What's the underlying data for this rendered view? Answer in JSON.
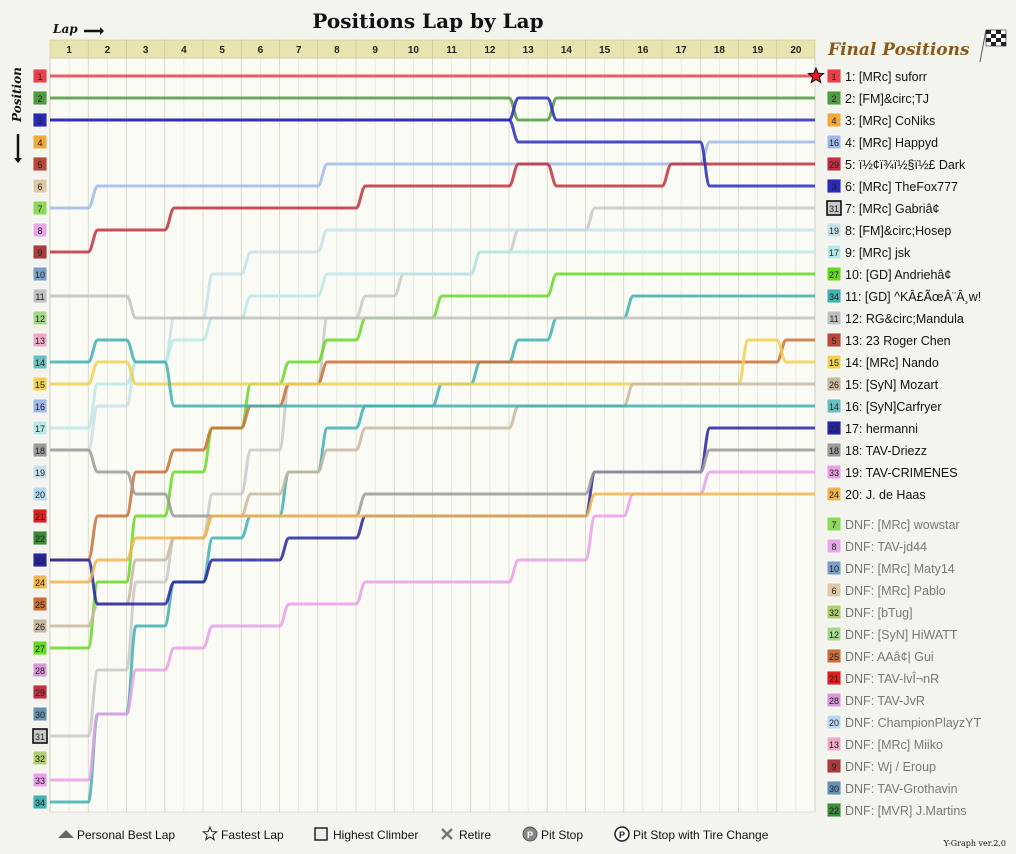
{
  "title": "Positions Lap by Lap",
  "lap_label": "Lap",
  "position_label": "Position",
  "final_title": "Final Positions",
  "version": "Y-Graph ver.2.0",
  "legend": [
    {
      "icon": "triangle",
      "label": "Personal Best Lap"
    },
    {
      "icon": "star",
      "label": "Fastest Lap"
    },
    {
      "icon": "square",
      "label": "Highest Climber"
    },
    {
      "icon": "cross",
      "label": "Retire"
    },
    {
      "icon": "pit",
      "label": "Pit Stop"
    },
    {
      "icon": "pit-tire",
      "label": "Pit Stop with Tire Change"
    }
  ],
  "colors": {
    "1": "#e8404a",
    "2": "#4e9a40",
    "3": "#2a2ab8",
    "4": "#f0aa3c",
    "5": "#b8483c",
    "6": "#e0c8a6",
    "7": "#8cd85a",
    "8": "#e8a8e8",
    "9": "#a83c3c",
    "10": "#7aa0c8",
    "11": "#c0c0c0",
    "12": "#a6d88a",
    "13": "#f0a8c8",
    "14": "#6ac0c0",
    "15": "#f0d050",
    "16": "#a0b8e8",
    "17": "#b8e8e8",
    "18": "#9a9a9a",
    "19": "#c8e0e8",
    "20": "#b8d8f0",
    "21": "#e02020",
    "22": "#3a8a3a",
    "23": "#2424a0",
    "24": "#f0b450",
    "25": "#c87038",
    "26": "#c8b8a0",
    "27": "#68d828",
    "28": "#d898d8",
    "29": "#c03040",
    "30": "#6890b0",
    "31": "#c8c8c8",
    "32": "#b0d070",
    "33": "#e8a0e8",
    "34": "#40b0b0"
  },
  "chart_data": {
    "type": "line",
    "title": "Positions Lap by Lap",
    "xlabel": "Lap",
    "ylabel": "Position",
    "laps": [
      1,
      2,
      3,
      4,
      5,
      6,
      7,
      8,
      9,
      10,
      11,
      12,
      13,
      14,
      15,
      16,
      17,
      18,
      19,
      20
    ],
    "positions": [
      1,
      2,
      3,
      4,
      5,
      6,
      7,
      8,
      9,
      10,
      11,
      12,
      13,
      14,
      15,
      16,
      17,
      18,
      19,
      20,
      21,
      22,
      23,
      24,
      25,
      26,
      27,
      28,
      29,
      30,
      31,
      32,
      33,
      34
    ],
    "series": [
      {
        "name": "[MRc] suforr",
        "color": "#e8404a",
        "positions": [
          1,
          1,
          1,
          1,
          1,
          1,
          1,
          1,
          1,
          1,
          1,
          1,
          1,
          1,
          1,
          1,
          1,
          1,
          1,
          1
        ]
      },
      {
        "name": "[FM]&circ;TJ",
        "color": "#4e9a40",
        "positions": [
          2,
          2,
          2,
          2,
          2,
          2,
          2,
          2,
          2,
          2,
          2,
          2,
          3,
          2,
          2,
          2,
          2,
          2,
          2,
          2
        ]
      },
      {
        "name": "[MRc] CoNiks",
        "color": "#2a2ab8",
        "positions": [
          3,
          3,
          3,
          3,
          3,
          3,
          3,
          3,
          3,
          3,
          3,
          3,
          2,
          3,
          3,
          3,
          3,
          3,
          3,
          3
        ]
      },
      {
        "name": "[MRc] Happyd",
        "color": "#a0b8e8",
        "positions": [
          7,
          6,
          6,
          6,
          6,
          6,
          6,
          5,
          5,
          5,
          5,
          5,
          5,
          5,
          5,
          5,
          5,
          4,
          4,
          4
        ]
      },
      {
        "name": "ï½¢ï¾ï½§ï½£ Dark",
        "color": "#c03040",
        "positions": [
          9,
          8,
          8,
          7,
          7,
          7,
          7,
          7,
          6,
          6,
          6,
          6,
          5,
          6,
          6,
          6,
          5,
          5,
          5,
          5
        ]
      },
      {
        "name": "[MRc] TheFox777",
        "color": "#2a2ab8",
        "positions": [
          3,
          3,
          3,
          3,
          3,
          3,
          3,
          3,
          3,
          3,
          3,
          3,
          4,
          4,
          4,
          4,
          4,
          6,
          6,
          6
        ]
      },
      {
        "name": "[MRc] Gabriâ¢",
        "color": "#c8c8c8",
        "positions": [
          31,
          28,
          24,
          22,
          20,
          18,
          15,
          12,
          11,
          10,
          10,
          9,
          8,
          8,
          7,
          7,
          7,
          7,
          7,
          7
        ]
      },
      {
        "name": "[FM]&circ;Hosep",
        "color": "#c8e0e8",
        "positions": [
          18,
          16,
          14,
          12,
          10,
          9,
          9,
          8,
          8,
          8,
          8,
          8,
          8,
          8,
          8,
          8,
          8,
          8,
          8,
          8
        ]
      },
      {
        "name": "[MRc] jsk",
        "color": "#b8e8e8",
        "positions": [
          17,
          15,
          14,
          13,
          12,
          11,
          11,
          10,
          10,
          10,
          10,
          9,
          9,
          9,
          9,
          9,
          9,
          9,
          9,
          9
        ]
      },
      {
        "name": "[GD] Andriehâ¢",
        "color": "#68d828",
        "positions": [
          27,
          24,
          21,
          19,
          17,
          15,
          14,
          13,
          12,
          12,
          11,
          11,
          11,
          10,
          10,
          10,
          10,
          10,
          10,
          10
        ]
      },
      {
        "name": "[GD] ^KÂ£ÃœÂ¨Â¸w!",
        "color": "#40b0b0",
        "positions": [
          34,
          30,
          26,
          24,
          22,
          21,
          19,
          17,
          16,
          16,
          15,
          14,
          13,
          12,
          12,
          11,
          11,
          11,
          11,
          11
        ]
      },
      {
        "name": "RG&circ;Mandula",
        "color": "#c0c0c0",
        "positions": [
          11,
          11,
          12,
          12,
          12,
          12,
          12,
          12,
          12,
          12,
          12,
          12,
          12,
          12,
          12,
          12,
          12,
          12,
          12,
          12
        ]
      },
      {
        "name": "23 Roger Chen",
        "color": "#c87038",
        "positions": [
          23,
          21,
          19,
          18,
          17,
          16,
          15,
          14,
          14,
          14,
          14,
          14,
          14,
          14,
          14,
          14,
          14,
          14,
          14,
          13
        ]
      },
      {
        "name": "[MRc] Nando",
        "color": "#f0d050",
        "positions": [
          15,
          14,
          15,
          15,
          15,
          15,
          15,
          15,
          15,
          15,
          15,
          15,
          15,
          15,
          15,
          15,
          15,
          15,
          13,
          14
        ]
      },
      {
        "name": "[SyN] Mozart",
        "color": "#c8b8a0",
        "positions": [
          26,
          25,
          23,
          22,
          21,
          20,
          19,
          18,
          17,
          17,
          17,
          17,
          16,
          16,
          16,
          15,
          15,
          15,
          15,
          15
        ]
      },
      {
        "name": "[SyN]Carfryer",
        "color": "#40b0b0",
        "positions": [
          14,
          13,
          14,
          16,
          16,
          16,
          16,
          16,
          16,
          16,
          16,
          16,
          16,
          16,
          16,
          16,
          16,
          16,
          16,
          16
        ]
      },
      {
        "name": "hermanni",
        "color": "#2424a0",
        "positions": [
          23,
          25,
          25,
          24,
          23,
          23,
          22,
          22,
          21,
          21,
          21,
          21,
          21,
          21,
          19,
          19,
          19,
          17,
          17,
          17
        ]
      },
      {
        "name": "TAV-Driezz",
        "color": "#9a9a9a",
        "positions": [
          18,
          19,
          20,
          21,
          21,
          21,
          21,
          21,
          20,
          20,
          20,
          20,
          20,
          20,
          19,
          19,
          19,
          18,
          18,
          18
        ]
      },
      {
        "name": "TAV-CRIMENES",
        "color": "#e8a0e8",
        "positions": [
          33,
          30,
          28,
          27,
          26,
          26,
          25,
          25,
          24,
          24,
          24,
          24,
          23,
          23,
          21,
          20,
          20,
          19,
          19,
          19
        ]
      },
      {
        "name": "J. de Haas",
        "color": "#f0b450",
        "positions": [
          24,
          23,
          22,
          22,
          21,
          21,
          21,
          21,
          21,
          21,
          21,
          21,
          21,
          21,
          20,
          20,
          20,
          20,
          20,
          20
        ]
      }
    ],
    "final_positions": [
      {
        "pos": 1,
        "num": "1",
        "name": "[MRc] suforr",
        "dnf": false
      },
      {
        "pos": 2,
        "num": "2",
        "name": "[FM]&circ;TJ",
        "dnf": false
      },
      {
        "pos": 3,
        "num": "4",
        "name": "[MRc] CoNiks",
        "dnf": false
      },
      {
        "pos": 4,
        "num": "16",
        "name": "[MRc] Happyd",
        "dnf": false
      },
      {
        "pos": 5,
        "num": "29",
        "name": "ï½¢ï¾ï½§ï½£ Dark",
        "dnf": false
      },
      {
        "pos": 6,
        "num": "3",
        "name": "[MRc] TheFox777",
        "dnf": false
      },
      {
        "pos": 7,
        "num": "31",
        "name": "[MRc] Gabriâ¢",
        "dnf": false,
        "highlight": true
      },
      {
        "pos": 8,
        "num": "19",
        "name": "[FM]&circ;Hosep",
        "dnf": false
      },
      {
        "pos": 9,
        "num": "17",
        "name": "[MRc] jsk",
        "dnf": false
      },
      {
        "pos": 10,
        "num": "27",
        "name": "[GD] Andriehâ¢",
        "dnf": false
      },
      {
        "pos": 11,
        "num": "34",
        "name": "[GD] ^KÂ£ÃœÂ¨Â¸w!",
        "dnf": false
      },
      {
        "pos": 12,
        "num": "11",
        "name": "RG&circ;Mandula",
        "dnf": false
      },
      {
        "pos": 13,
        "num": "5",
        "name": "23 Roger Chen",
        "dnf": false
      },
      {
        "pos": 14,
        "num": "15",
        "name": "[MRc] Nando",
        "dnf": false
      },
      {
        "pos": 15,
        "num": "26",
        "name": "[SyN] Mozart",
        "dnf": false
      },
      {
        "pos": 16,
        "num": "14",
        "name": "[SyN]Carfryer",
        "dnf": false
      },
      {
        "pos": 17,
        "num": "23",
        "name": "hermanni",
        "dnf": false
      },
      {
        "pos": 18,
        "num": "18",
        "name": "TAV-Driezz",
        "dnf": false
      },
      {
        "pos": 19,
        "num": "33",
        "name": "TAV-CRIMENES",
        "dnf": false
      },
      {
        "pos": 20,
        "num": "24",
        "name": "J. de Haas",
        "dnf": false
      },
      {
        "pos": "DNF",
        "num": "7",
        "name": "[MRc] wowstar",
        "dnf": true
      },
      {
        "pos": "DNF",
        "num": "8",
        "name": "TAV-jd44",
        "dnf": true
      },
      {
        "pos": "DNF",
        "num": "10",
        "name": "[MRc] Maty14",
        "dnf": true
      },
      {
        "pos": "DNF",
        "num": "6",
        "name": "[MRc] Pablo",
        "dnf": true
      },
      {
        "pos": "DNF",
        "num": "32",
        "name": "[bTug]",
        "dnf": true
      },
      {
        "pos": "DNF",
        "num": "12",
        "name": "[SyN] HiWATT",
        "dnf": true
      },
      {
        "pos": "DNF",
        "num": "25",
        "name": "AAâ¢| Gui",
        "dnf": true
      },
      {
        "pos": "DNF",
        "num": "21",
        "name": "TAV-lvÎ¬nR",
        "dnf": true
      },
      {
        "pos": "DNF",
        "num": "28",
        "name": "TAV-JvR",
        "dnf": true
      },
      {
        "pos": "DNF",
        "num": "20",
        "name": "ChampionPlayzYT",
        "dnf": true
      },
      {
        "pos": "DNF",
        "num": "13",
        "name": "[MRc] Miiko",
        "dnf": true
      },
      {
        "pos": "DNF",
        "num": "9",
        "name": "Wj / Eroup",
        "dnf": true
      },
      {
        "pos": "DNF",
        "num": "30",
        "name": "TAV-Grothavin",
        "dnf": true
      },
      {
        "pos": "DNF",
        "num": "22",
        "name": "[MVR] J.Martins",
        "dnf": true
      }
    ]
  }
}
